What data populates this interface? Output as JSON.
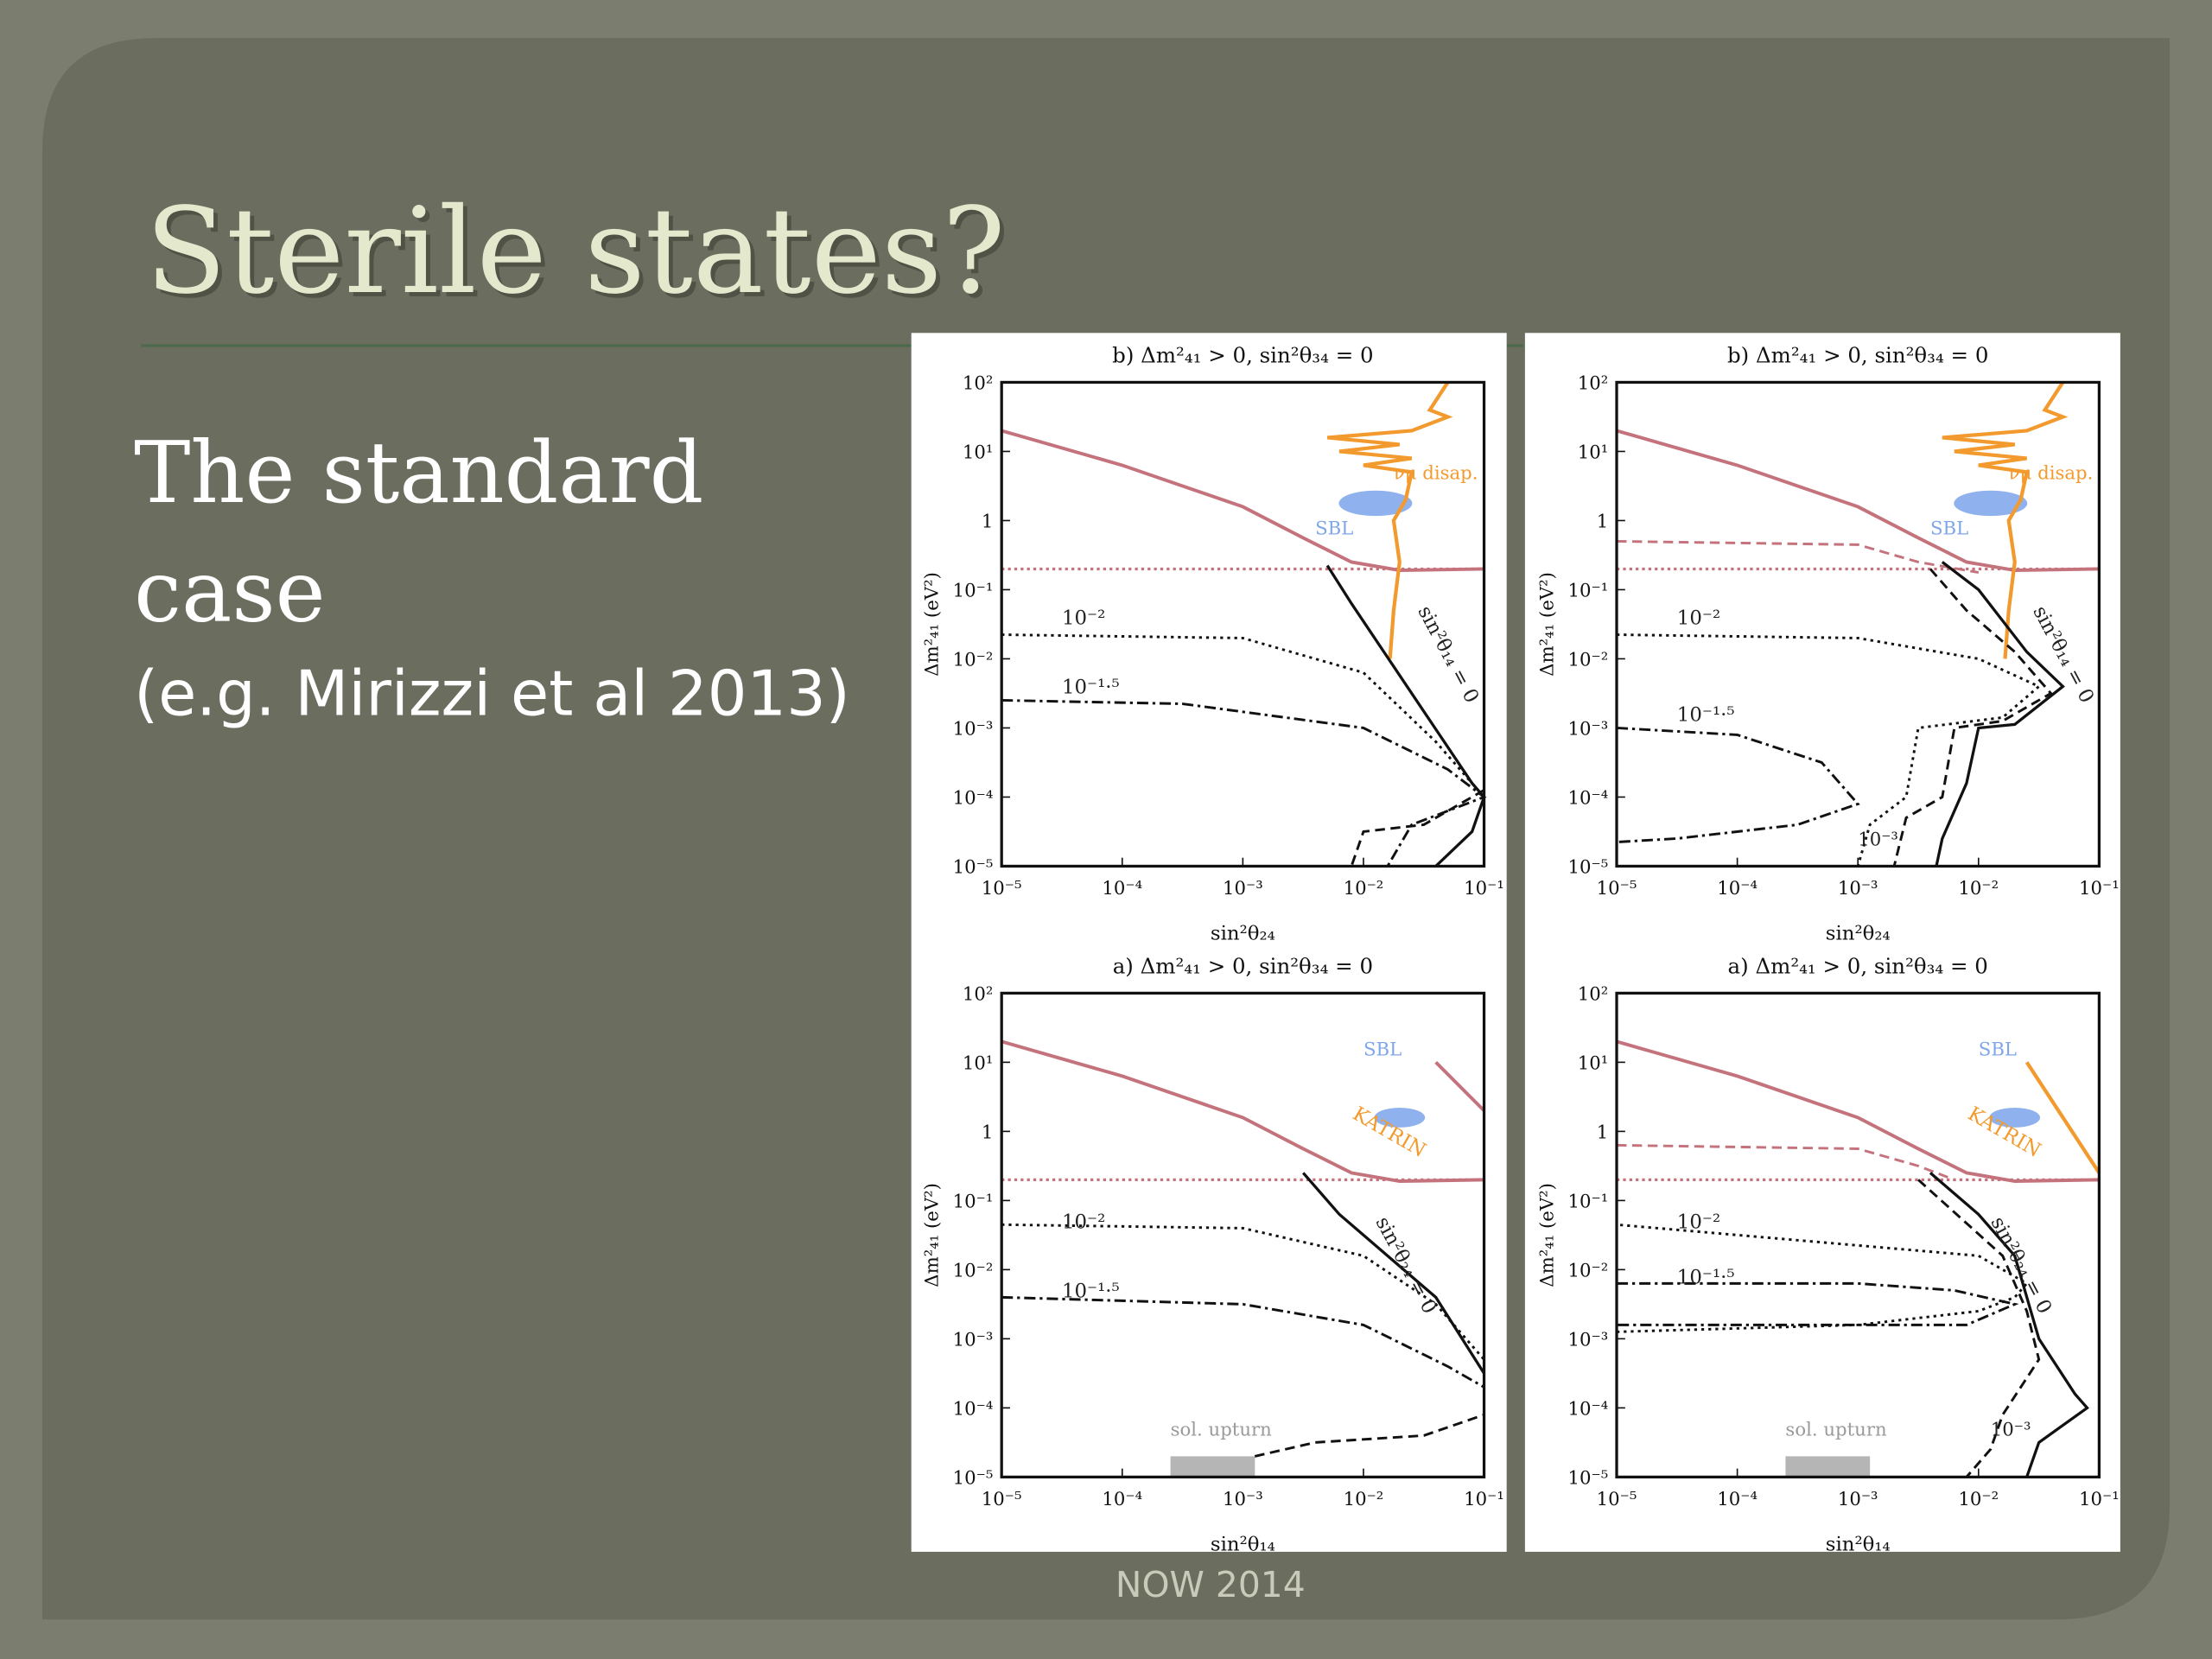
{
  "slide": {
    "title": "Sterile states?",
    "body": [
      "The standard",
      "case",
      "(e.g. Mirizzi et al 2013)"
    ],
    "footer": "NOW 2014"
  },
  "figure": {
    "xticks": [
      "10⁻⁵",
      "10⁻⁴",
      "10⁻³",
      "10⁻²",
      "10⁻¹"
    ],
    "yticks": [
      "10²",
      "10¹",
      "1",
      "10⁻¹",
      "10⁻²",
      "10⁻³",
      "10⁻⁴",
      "10⁻⁵"
    ],
    "panels": [
      {
        "title": "b) Δm²₄₁ > 0, sin²θ₃₄ = 0",
        "xlabel": "sin²θ₂₄",
        "ylabel": "Δm²₄₁ (eV²)",
        "labels": [
          "10⁻²",
          "10⁻¹·⁵",
          "sin²θ₁₄ = 0",
          "νμ disap.",
          "SBL"
        ]
      },
      {
        "title": "b) Δm²₄₁ > 0, sin²θ₃₄ = 0",
        "xlabel": "sin²θ₂₄",
        "ylabel": "Δm²₄₁ (eV²)",
        "labels": [
          "10⁻²",
          "10⁻¹·⁵",
          "10⁻³",
          "sin²θ₁₄ = 0",
          "νμ disap.",
          "SBL"
        ]
      },
      {
        "title": "a) Δm²₄₁ > 0, sin²θ₃₄ = 0",
        "xlabel": "sin²θ₁₄",
        "ylabel": "Δm²₄₁ (eV²)",
        "labels": [
          "10⁻²",
          "10⁻¹·⁵",
          "sin²θ₂₄ = 0",
          "SBL",
          "KATRIN",
          "sol. upturn"
        ]
      },
      {
        "title": "a) Δm²₄₁ > 0, sin²θ₃₄ = 0",
        "xlabel": "sin²θ₁₄",
        "ylabel": "Δm²₄₁ (eV²)",
        "labels": [
          "10⁻²",
          "10⁻¹·⁵",
          "10⁻³",
          "sin²θ₂₄ = 0",
          "SBL",
          "KATRIN",
          "sol. upturn"
        ]
      }
    ]
  }
}
